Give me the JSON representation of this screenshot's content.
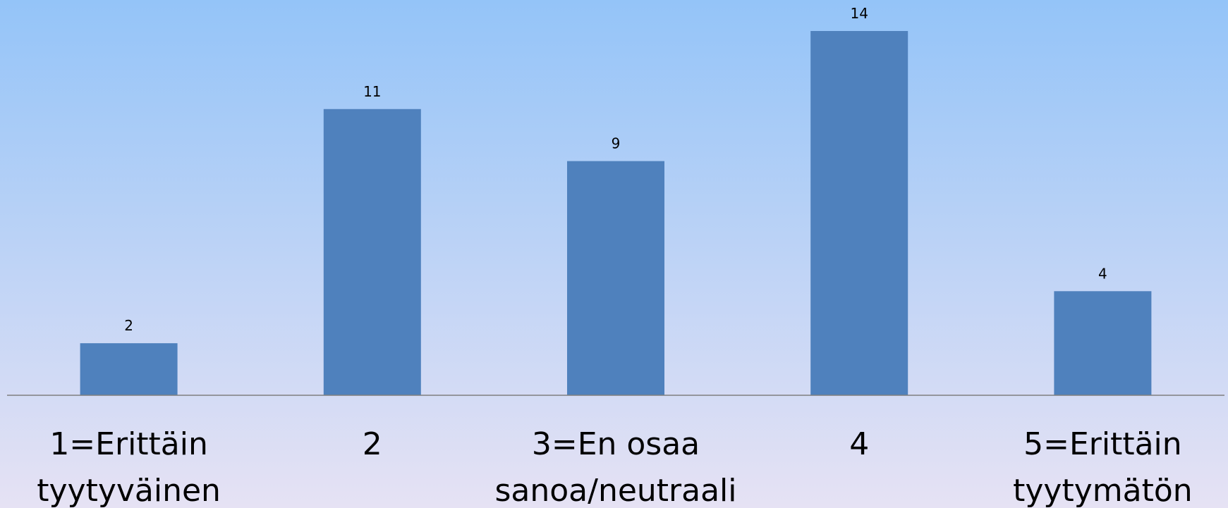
{
  "chart_data": {
    "type": "bar",
    "categories": [
      [
        "1=Erittäin",
        "tyytyväinen"
      ],
      [
        "2"
      ],
      [
        "3=En osaa",
        "sanoa/neutraali"
      ],
      [
        "4"
      ],
      [
        "5=Erittäin",
        "tyytymätön"
      ]
    ],
    "values": [
      2,
      11,
      9,
      14,
      4
    ],
    "title": "",
    "xlabel": "",
    "ylabel": "",
    "ylim": [
      0,
      14
    ],
    "grid": false,
    "legend": "none",
    "data_labels": true
  },
  "colors": {
    "bar": "#4F81BD",
    "axis_line": "#7F7F7F",
    "background_top": "#94C4F8",
    "background_bottom": "#E6E2F4"
  }
}
